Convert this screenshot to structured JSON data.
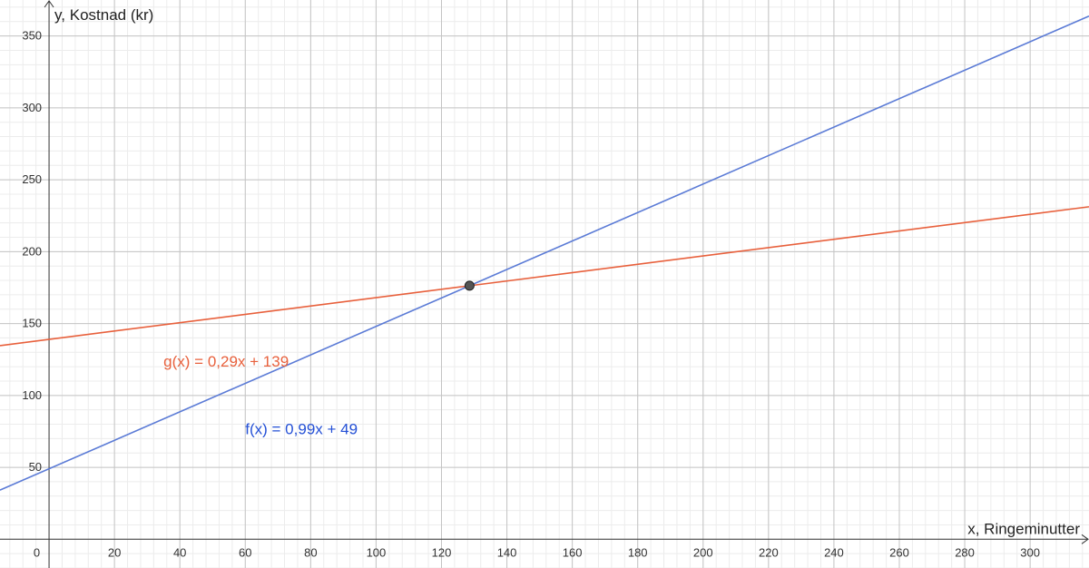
{
  "chart_data": {
    "type": "line",
    "xlabel": "x, Ringeminutter",
    "ylabel": "y, Kostnad (kr)",
    "origin_label": "0",
    "xlim": [
      -15,
      318
    ],
    "ylim": [
      -20,
      375
    ],
    "x_ticks": [
      20,
      40,
      60,
      80,
      100,
      120,
      140,
      160,
      180,
      200,
      220,
      240,
      260,
      280,
      300
    ],
    "y_ticks": [
      50,
      100,
      150,
      200,
      250,
      300,
      350
    ],
    "x_minor_step": 4,
    "y_minor_step": 10,
    "grid": true,
    "series": [
      {
        "name": "g(x) = 0,29x + 139",
        "slope": 0.29,
        "intercept": 139,
        "color": "#e8603c",
        "label_x": 35,
        "label_y": 120
      },
      {
        "name": "f(x) = 0,99x + 49",
        "slope": 0.99,
        "intercept": 49,
        "color": "#5b7bd6",
        "label_color": "#2450d6",
        "label_x": 60,
        "label_y": 73
      }
    ],
    "intersection": {
      "x": 128.57,
      "y": 176.29,
      "color": "#555555"
    }
  }
}
